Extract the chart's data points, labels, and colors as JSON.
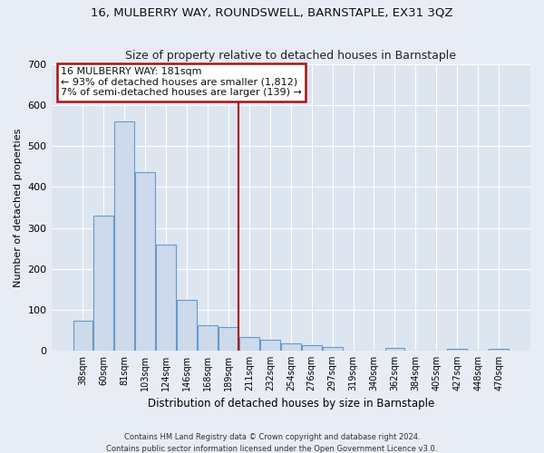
{
  "title": "16, MULBERRY WAY, ROUNDSWELL, BARNSTAPLE, EX31 3QZ",
  "subtitle": "Size of property relative to detached houses in Barnstaple",
  "xlabel": "Distribution of detached houses by size in Barnstaple",
  "ylabel": "Number of detached properties",
  "bar_color": "#ccdaeb",
  "bar_edge_color": "#6699cc",
  "fig_bg_color": "#e8edf5",
  "ax_bg_color": "#dde5f0",
  "grid_color": "#ffffff",
  "categories": [
    "38sqm",
    "60sqm",
    "81sqm",
    "103sqm",
    "124sqm",
    "146sqm",
    "168sqm",
    "189sqm",
    "211sqm",
    "232sqm",
    "254sqm",
    "276sqm",
    "297sqm",
    "319sqm",
    "340sqm",
    "362sqm",
    "384sqm",
    "405sqm",
    "427sqm",
    "448sqm",
    "470sqm"
  ],
  "values": [
    72,
    330,
    560,
    437,
    260,
    125,
    63,
    58,
    32,
    27,
    17,
    13,
    9,
    0,
    0,
    7,
    0,
    0,
    5,
    0,
    5
  ],
  "ylim": [
    0,
    700
  ],
  "yticks": [
    0,
    100,
    200,
    300,
    400,
    500,
    600,
    700
  ],
  "vline_x": 7.5,
  "vline_color": "#aa1111",
  "annotation_title": "16 MULBERRY WAY: 181sqm",
  "annotation_line1": "← 93% of detached houses are smaller (1,812)",
  "annotation_line2": "7% of semi-detached houses are larger (139) →",
  "annotation_box_color": "#ffffff",
  "annotation_box_edge": "#aa1111",
  "footer1": "Contains HM Land Registry data © Crown copyright and database right 2024.",
  "footer2": "Contains public sector information licensed under the Open Government Licence v3.0."
}
